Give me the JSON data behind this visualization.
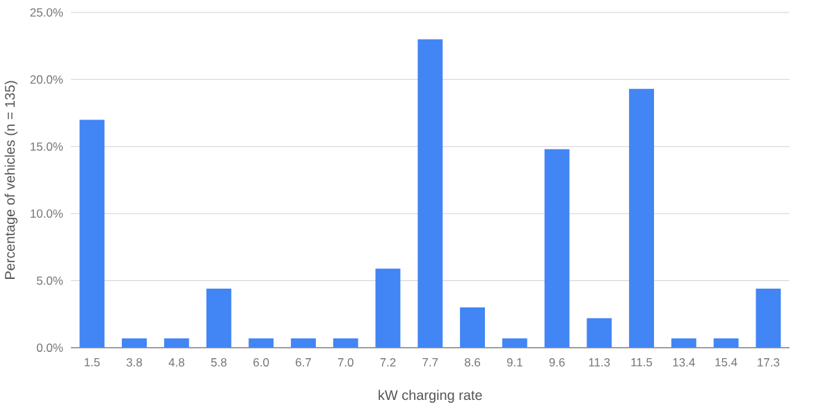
{
  "chart_data": {
    "type": "bar",
    "xlabel": "kW charging rate",
    "ylabel": "Percentage of vehicles (n = 135)",
    "categories": [
      "1.5",
      "3.8",
      "4.8",
      "5.8",
      "6.0",
      "6.7",
      "7.0",
      "7.2",
      "7.7",
      "8.6",
      "9.1",
      "9.6",
      "11.3",
      "11.5",
      "13.4",
      "15.4",
      "17.3"
    ],
    "values": [
      17.0,
      0.7,
      0.7,
      4.4,
      0.7,
      0.7,
      0.7,
      5.9,
      23.0,
      3.0,
      0.7,
      14.8,
      2.2,
      19.3,
      0.7,
      0.7,
      4.4
    ],
    "color": "#4285f4",
    "ylim": [
      0,
      25
    ],
    "yticks": [
      {
        "value": 0,
        "label": "0.0%"
      },
      {
        "value": 5,
        "label": "5.0%"
      },
      {
        "value": 10,
        "label": "10.0%"
      },
      {
        "value": 15,
        "label": "15.0%"
      },
      {
        "value": 20,
        "label": "20.0%"
      },
      {
        "value": 25,
        "label": "25.0%"
      }
    ],
    "grid": "y"
  }
}
